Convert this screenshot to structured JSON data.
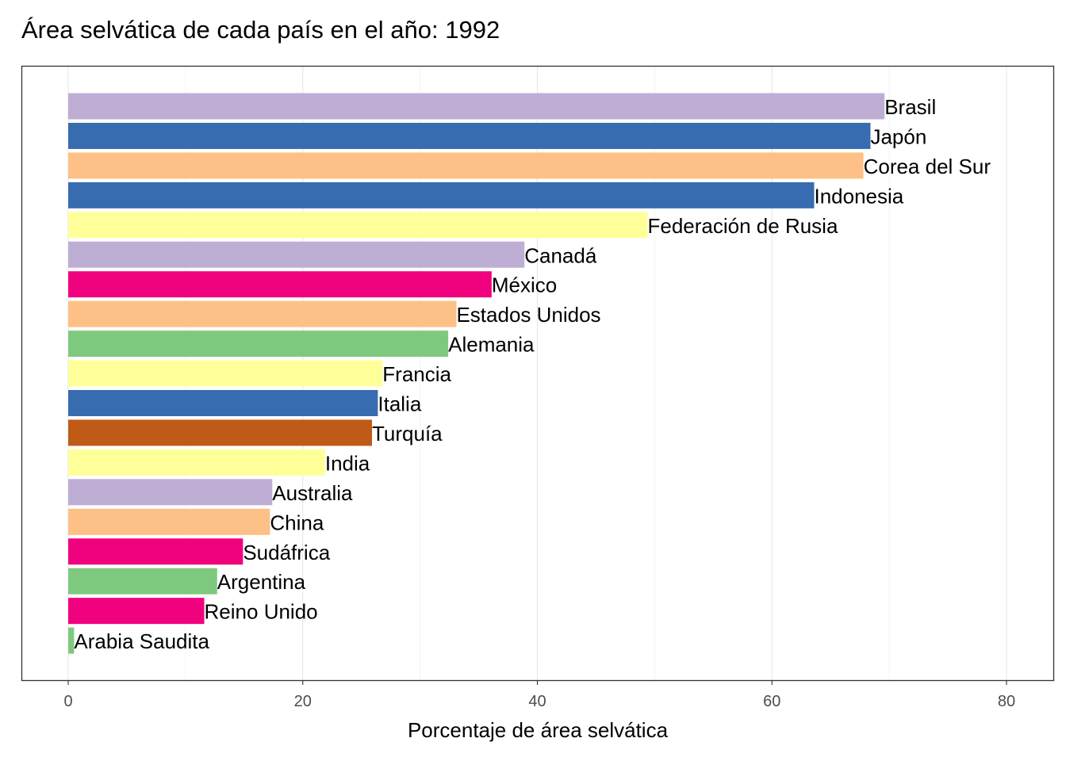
{
  "chart_data": {
    "type": "bar",
    "orientation": "horizontal",
    "title": "Área selvática de cada país en el año: 1992",
    "xlabel": "Porcentaje de área selvática",
    "ylabel": "",
    "xlim": [
      -4,
      84
    ],
    "xticks": [
      0,
      20,
      40,
      60,
      80
    ],
    "grid": true,
    "legend": "none",
    "bars": [
      {
        "name": "Brasil",
        "value": 69.6,
        "color": "#BEAED4"
      },
      {
        "name": "Japón",
        "value": 68.4,
        "color": "#386CB0"
      },
      {
        "name": "Corea del Sur",
        "value": 67.8,
        "color": "#FDC086"
      },
      {
        "name": "Indonesia",
        "value": 63.6,
        "color": "#386CB0"
      },
      {
        "name": "Federación de Rusia",
        "value": 49.4,
        "color": "#FFFF99"
      },
      {
        "name": "Canadá",
        "value": 38.9,
        "color": "#BEAED4"
      },
      {
        "name": "México",
        "value": 36.1,
        "color": "#F0027F"
      },
      {
        "name": "Estados Unidos",
        "value": 33.1,
        "color": "#FDC086"
      },
      {
        "name": "Alemania",
        "value": 32.4,
        "color": "#7FC97F"
      },
      {
        "name": "Francia",
        "value": 26.8,
        "color": "#FFFF99"
      },
      {
        "name": "Italia",
        "value": 26.4,
        "color": "#386CB0"
      },
      {
        "name": "Turquía",
        "value": 25.9,
        "color": "#BF5B17"
      },
      {
        "name": "India",
        "value": 21.9,
        "color": "#FFFF99"
      },
      {
        "name": "Australia",
        "value": 17.4,
        "color": "#BEAED4"
      },
      {
        "name": "China",
        "value": 17.2,
        "color": "#FDC086"
      },
      {
        "name": "Sudáfrica",
        "value": 14.9,
        "color": "#F0027F"
      },
      {
        "name": "Argentina",
        "value": 12.7,
        "color": "#7FC97F"
      },
      {
        "name": "Reino Unido",
        "value": 11.6,
        "color": "#F0027F"
      },
      {
        "name": "Arabia Saudita",
        "value": 0.5,
        "color": "#7FC97F"
      }
    ]
  }
}
